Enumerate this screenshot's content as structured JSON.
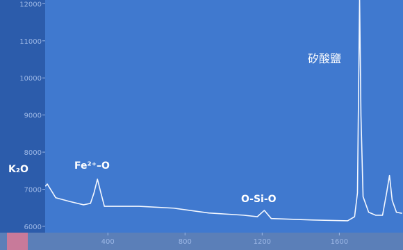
{
  "chart_data": {
    "type": "line",
    "x": [
      76,
      86,
      130,
      202,
      274,
      310,
      328,
      346,
      364,
      382,
      562,
      742,
      923,
      1103,
      1175,
      1211,
      1247,
      1463,
      1643,
      1679,
      1694,
      1705,
      1712,
      1723,
      1752,
      1788,
      1824,
      1845,
      1860,
      1874,
      1896,
      1925
    ],
    "series": [
      {
        "color": "#f4f8ff",
        "values": [
          7080,
          7140,
          6770,
          6670,
          6580,
          6620,
          6900,
          7270,
          6900,
          6540,
          6540,
          6490,
          6360,
          6300,
          6260,
          6430,
          6210,
          6170,
          6150,
          6260,
          6900,
          12150,
          9000,
          6800,
          6380,
          6300,
          6300,
          6900,
          7370,
          6700,
          6380,
          6350
        ]
      }
    ],
    "xlim": [
      75,
      1930
    ],
    "ylim": [
      5830,
      12100
    ],
    "xticks": [
      400,
      800,
      1200,
      1600
    ],
    "yticks": [
      6000,
      7000,
      8000,
      9000,
      10000,
      11000,
      12000
    ],
    "annotations": [
      "K₂O",
      "Fe²⁺–O",
      "O-Si-O",
      "矽酸鹽"
    ]
  }
}
